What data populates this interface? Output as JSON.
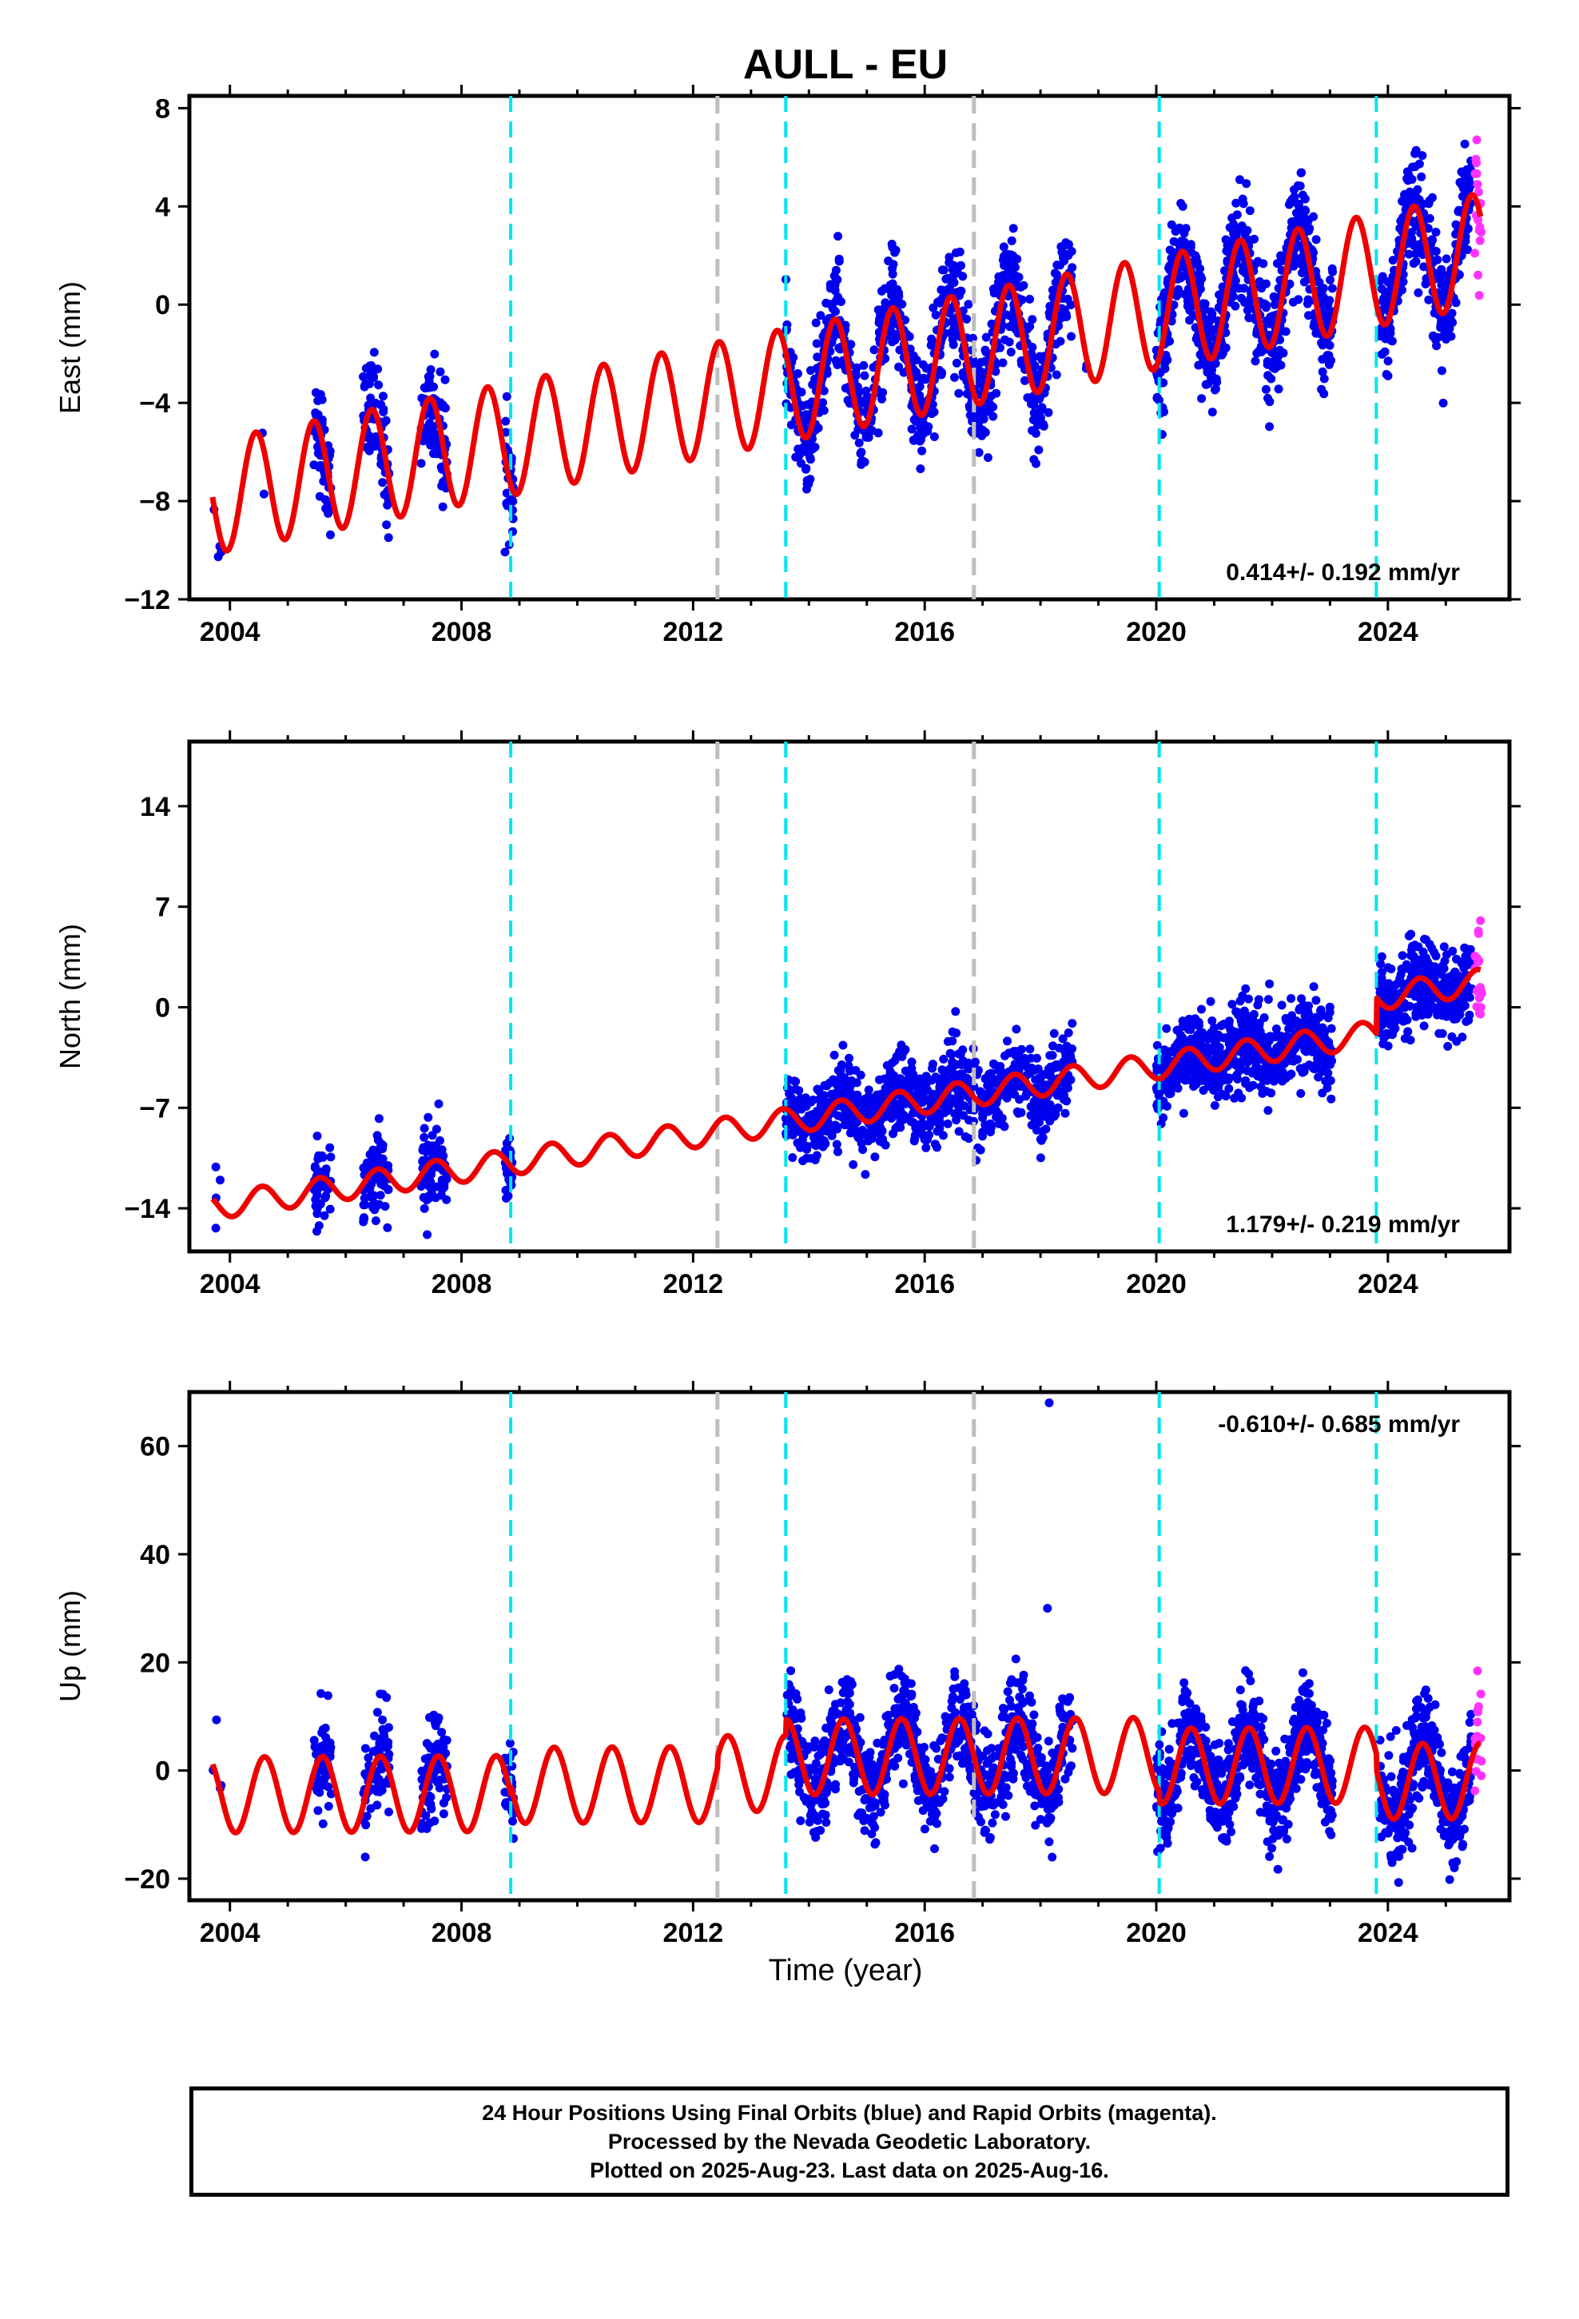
{
  "title": "AULL - EU",
  "xlabel": "Time (year)",
  "footer": {
    "line1": "24 Hour Positions Using Final Orbits (blue) and Rapid Orbits (magenta).",
    "line2": "Processed by the Nevada Geodetic Laboratory.",
    "line3": "Plotted on 2025-Aug-23. Last data on 2025-Aug-16."
  },
  "colors": {
    "final": "#0000ee",
    "rapid": "#ff33ff",
    "model": "#ee0000",
    "break_equipment": "#00e5ee",
    "break_other": "#bebebe"
  },
  "chart_data": [
    {
      "type": "scatter",
      "name": "east",
      "ylabel": "East (mm)",
      "xlim": [
        2003.3,
        2026.1
      ],
      "ylim": [
        -12,
        8.5
      ],
      "xticks": [
        2004,
        2008,
        2012,
        2016,
        2020,
        2024
      ],
      "yticks": [
        -12,
        -8,
        -4,
        0,
        4,
        8
      ],
      "rate_label": "0.414+/- 0.192 mm/yr",
      "rate_position": "bottom-right",
      "model": {
        "offset_at_2004": -7.7,
        "rate": 0.46,
        "amplitude": 2.3,
        "peak_month_fraction": 0.45,
        "steps": [
          [
            2012.42,
            0.0
          ],
          [
            2013.6,
            0.0
          ],
          [
            2016.85,
            0.0
          ],
          [
            2020.05,
            0.0
          ],
          [
            2023.8,
            0.0
          ]
        ]
      },
      "data_segments": [
        [
          2003.7,
          2003.85,
          4
        ],
        [
          2004.55,
          2004.6,
          2
        ],
        [
          2005.45,
          2005.75,
          50
        ],
        [
          2006.3,
          2006.75,
          80
        ],
        [
          2007.3,
          2007.75,
          80
        ],
        [
          2008.75,
          2008.9,
          35
        ],
        [
          2013.6,
          2018.55,
          900
        ],
        [
          2018.75,
          2018.8,
          2
        ],
        [
          2020.0,
          2023.05,
          700
        ],
        [
          2023.85,
          2025.45,
          350
        ]
      ],
      "scatter_spread": 1.1,
      "rapid_segment": [
        2025.5,
        2025.62,
        18
      ],
      "breaks_equipment": [
        2008.85,
        2013.6,
        2020.05,
        2023.8
      ],
      "breaks_other": [
        2012.42,
        2016.85
      ]
    },
    {
      "type": "scatter",
      "name": "north",
      "ylabel": "North (mm)",
      "xlim": [
        2003.3,
        2026.1
      ],
      "ylim": [
        -17,
        18.5
      ],
      "xticks": [
        2004,
        2008,
        2012,
        2016,
        2020,
        2024
      ],
      "yticks": [
        -14,
        -7,
        0,
        7,
        14
      ],
      "rate_label": "1.179+/- 0.219 mm/yr",
      "rate_position": "bottom-right",
      "model": {
        "offset_at_2004": -13.7,
        "rate": 0.6,
        "amplitude": 0.9,
        "peak_month_fraction": 0.55,
        "steps": [
          [
            2013.6,
            0.0
          ],
          [
            2016.85,
            0.0
          ],
          [
            2018.6,
            0.0
          ],
          [
            2023.8,
            2.5
          ]
        ]
      },
      "data_segments": [
        [
          2003.7,
          2003.85,
          4
        ],
        [
          2005.45,
          2005.75,
          50
        ],
        [
          2006.3,
          2006.75,
          80
        ],
        [
          2007.3,
          2007.75,
          80
        ],
        [
          2008.75,
          2008.9,
          35
        ],
        [
          2013.6,
          2018.55,
          900
        ],
        [
          2020.0,
          2023.05,
          700
        ],
        [
          2023.85,
          2025.45,
          350
        ]
      ],
      "scatter_spread": 1.4,
      "rapid_segment": [
        2025.5,
        2025.62,
        18
      ],
      "breaks_equipment": [
        2008.85,
        2013.6,
        2020.05,
        2023.8
      ],
      "breaks_other": [
        2012.42,
        2016.85
      ]
    },
    {
      "type": "scatter",
      "name": "up",
      "ylabel": "Up (mm)",
      "xlim": [
        2003.3,
        2026.1
      ],
      "ylim": [
        -24,
        70
      ],
      "xticks": [
        2004,
        2008,
        2012,
        2016,
        2020,
        2024
      ],
      "yticks": [
        -20,
        0,
        20,
        40,
        60
      ],
      "rate_label": "-0.610+/- 0.685 mm/yr",
      "rate_position": "top-right",
      "model": {
        "offset_at_2004": -4.5,
        "rate": 0.05,
        "amplitude": 7.0,
        "peak_month_fraction": 0.6,
        "steps": [
          [
            2008.85,
            1.5
          ],
          [
            2012.42,
            2.0
          ],
          [
            2013.6,
            3.0
          ],
          [
            2020.05,
            -2.0
          ],
          [
            2023.8,
            -3.0
          ]
        ]
      },
      "data_segments": [
        [
          2003.7,
          2003.85,
          4
        ],
        [
          2005.45,
          2005.75,
          50
        ],
        [
          2006.3,
          2006.75,
          80
        ],
        [
          2007.3,
          2007.75,
          80
        ],
        [
          2008.75,
          2008.9,
          35
        ],
        [
          2013.6,
          2018.55,
          900
        ],
        [
          2020.0,
          2023.05,
          700
        ],
        [
          2023.85,
          2025.45,
          350
        ]
      ],
      "scatter_spread": 4.5,
      "rapid_segment": [
        2025.5,
        2025.62,
        18
      ],
      "outliers": [
        [
          2018.15,
          68
        ],
        [
          2018.12,
          30
        ]
      ],
      "breaks_equipment": [
        2008.85,
        2013.6,
        2020.05,
        2023.8
      ],
      "breaks_other": [
        2012.42,
        2016.85
      ]
    }
  ]
}
